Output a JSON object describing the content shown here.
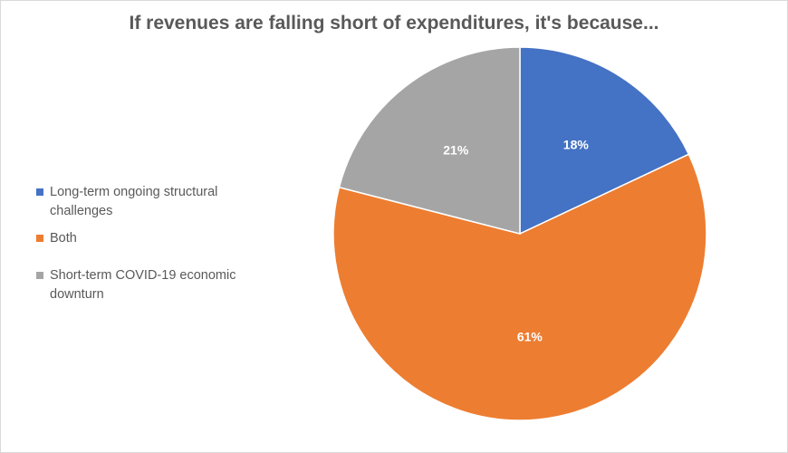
{
  "chart_data": {
    "type": "pie",
    "title": "If revenues are falling short of expenditures, it's because...",
    "slices": [
      {
        "label": "Long-term ongoing structural challenges",
        "value": 18,
        "data_label": "18%",
        "color": "#4472c4"
      },
      {
        "label": "Both",
        "value": 61,
        "data_label": "61%",
        "color": "#ed7d31"
      },
      {
        "label": "Short-term COVID-19 economic downturn",
        "value": 21,
        "data_label": "21%",
        "color": "#a5a5a5"
      }
    ],
    "legend_position": "left"
  }
}
